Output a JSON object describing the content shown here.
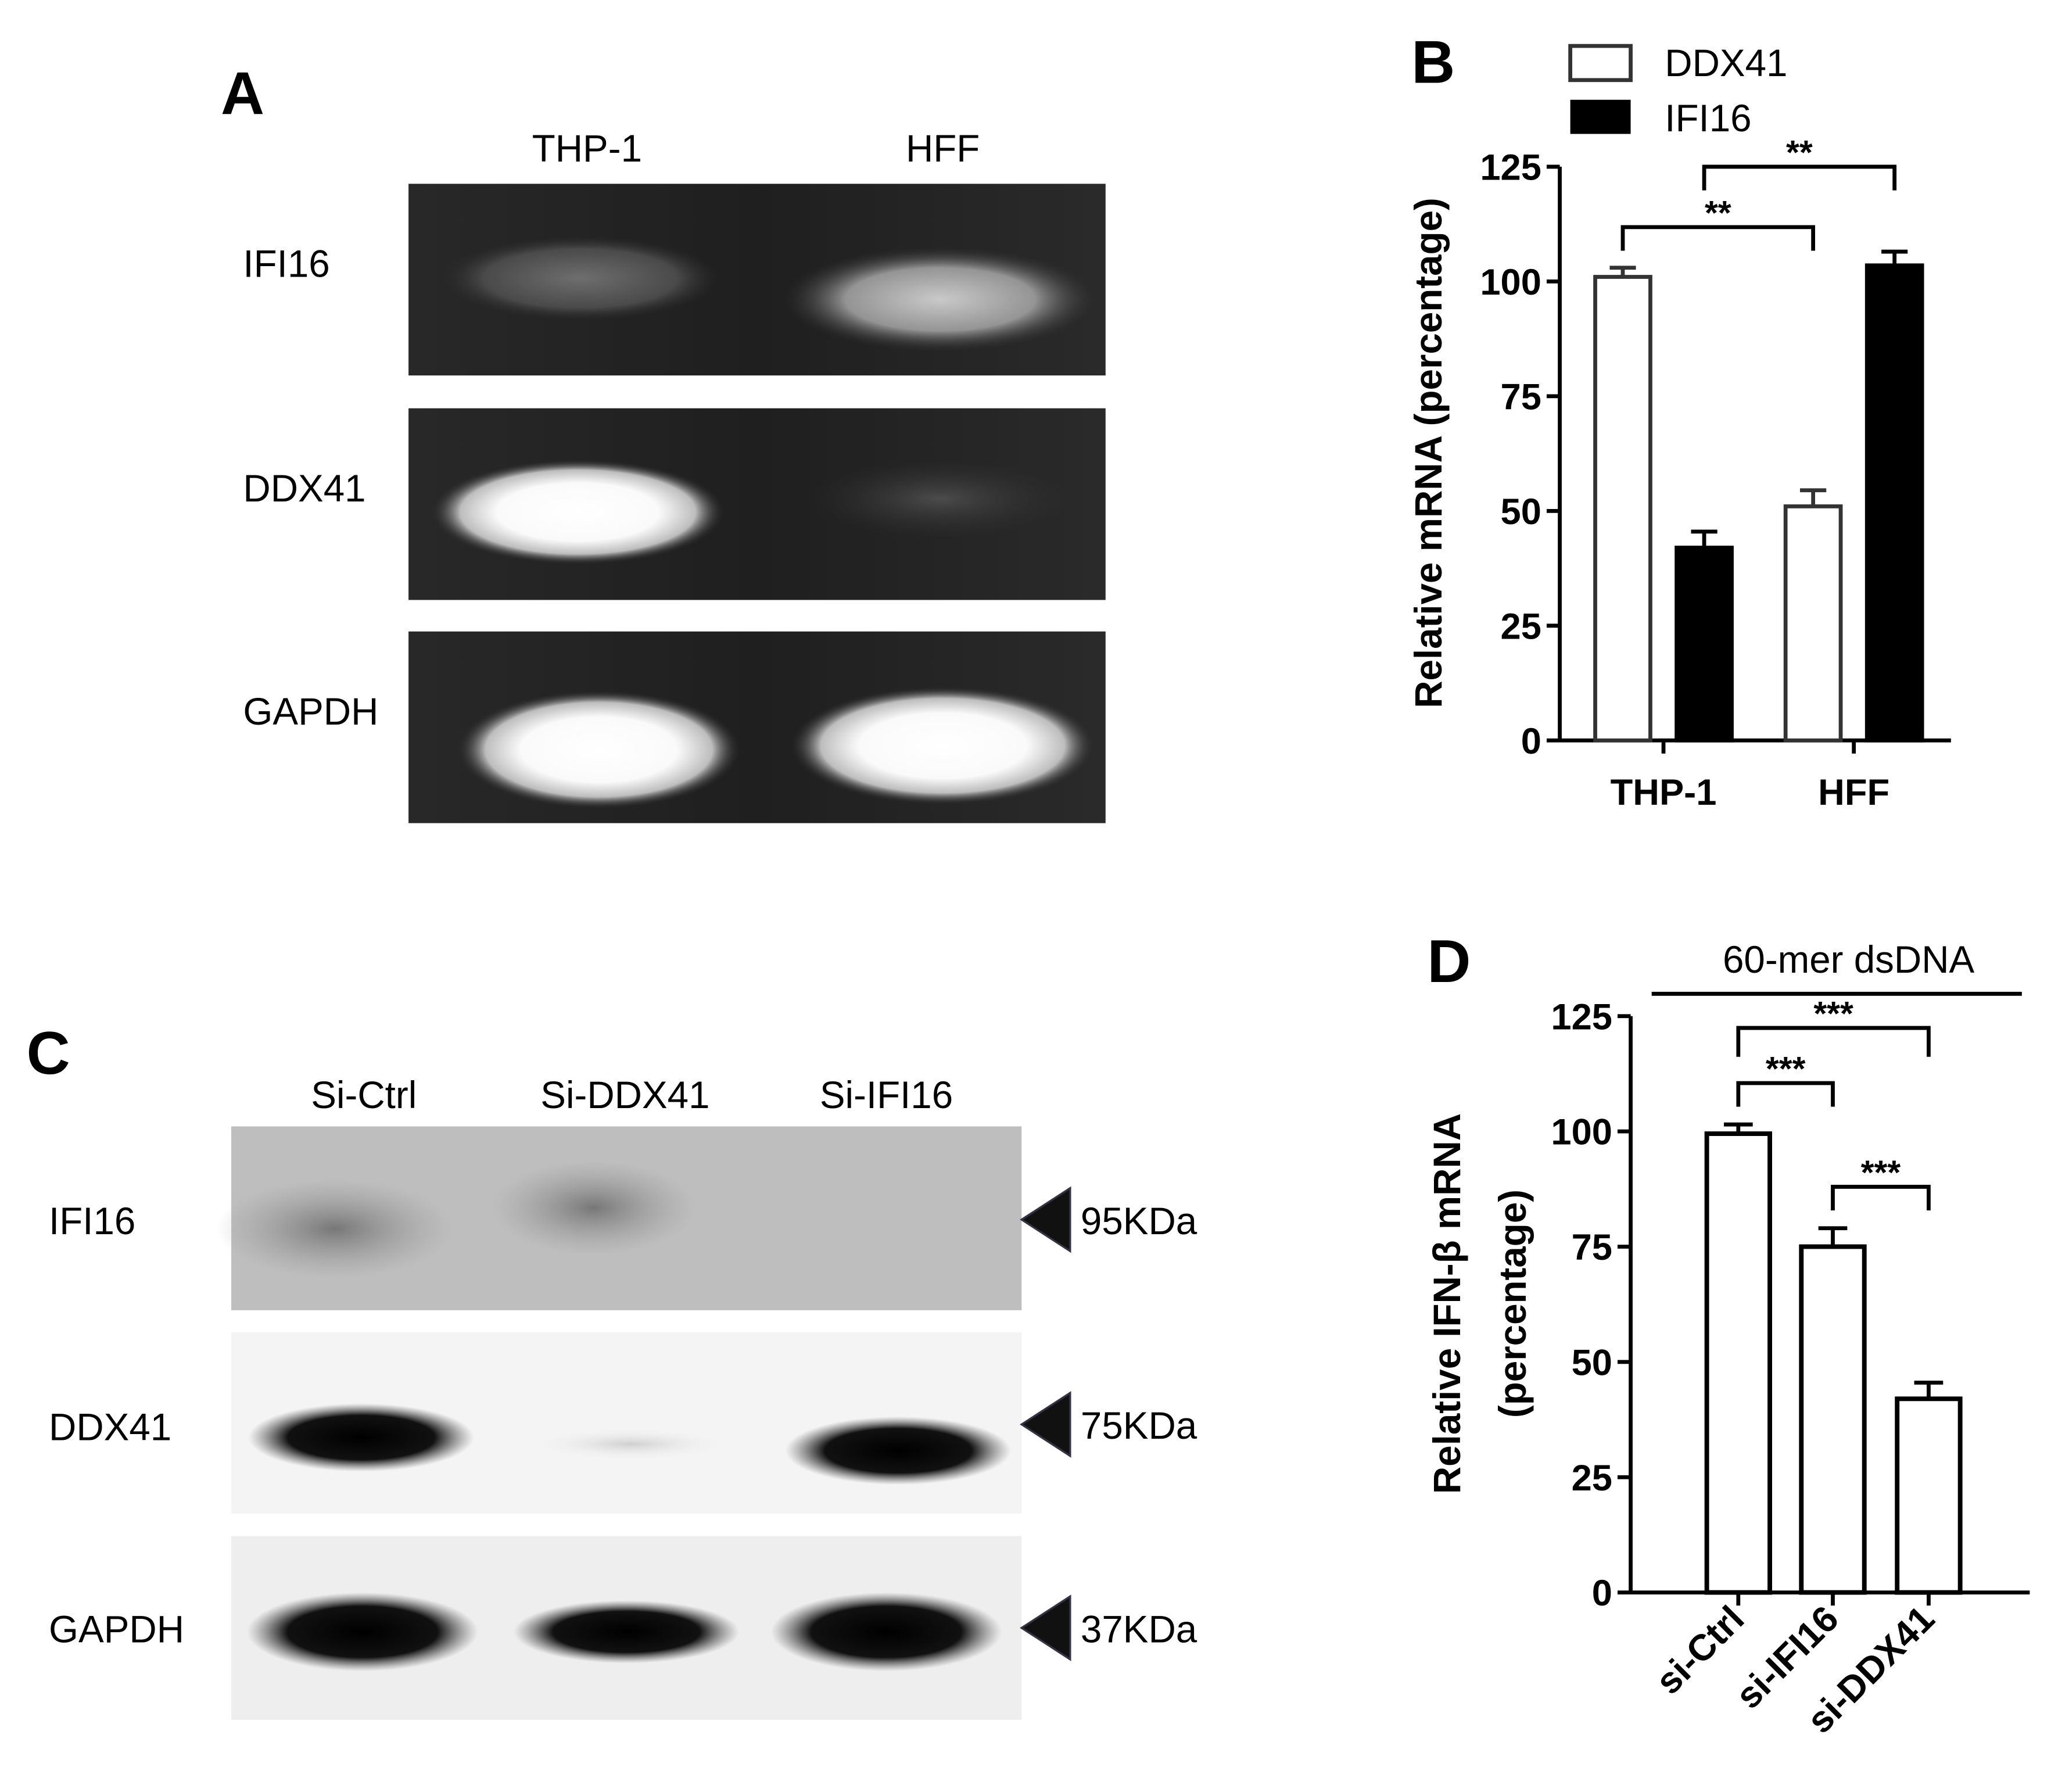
{
  "panel_a": {
    "letter": "A",
    "lanes": [
      "THP-1",
      "HFF"
    ],
    "rows": [
      "IFI16",
      "DDX41",
      "GAPDH"
    ]
  },
  "panel_c": {
    "letter": "C",
    "lanes": [
      "Si-Ctrl",
      "Si-DDX41",
      "Si-IFI16"
    ],
    "rows": [
      "IFI16",
      "DDX41",
      "GAPDH"
    ],
    "markers": [
      "95KDa",
      "75KDa",
      "37KDa"
    ]
  },
  "chart_data": [
    {
      "panel": "B",
      "type": "bar",
      "categories": [
        "THP-1",
        "HFF"
      ],
      "ylabel": "Relative mRNA (percentage)",
      "ylim": [
        0,
        125
      ],
      "yticks": [
        "0",
        "25",
        "50",
        "75",
        "100",
        "125"
      ],
      "series": [
        {
          "name": "DDX41",
          "values": [
            101,
            51
          ],
          "errors": [
            2,
            3.5
          ],
          "fill": "#ffffff",
          "stroke": "#333333"
        },
        {
          "name": "IFI16",
          "values": [
            42,
            103.5
          ],
          "errors": [
            3.5,
            3
          ],
          "fill": "#000000",
          "stroke": "#000000"
        }
      ],
      "legend": "top",
      "significance": [
        {
          "label": "**",
          "from": "THP-1 DDX41",
          "to": "HFF DDX41"
        },
        {
          "label": "**",
          "from": "THP-1 IFI16",
          "to": "HFF IFI16"
        }
      ]
    },
    {
      "panel": "D",
      "type": "bar",
      "title": "60-mer dsDNA",
      "categories": [
        "si-Ctrl",
        "si-IFI16",
        "si-DDX41"
      ],
      "ylabel": "Relative IFN-β mRNA (percentage)",
      "ylabel_lines": [
        "Relative IFN-β mRNA",
        "(percentage)"
      ],
      "ylim": [
        0,
        125
      ],
      "yticks": [
        "0",
        "25",
        "50",
        "75",
        "100",
        "125"
      ],
      "values": [
        99.5,
        75,
        42
      ],
      "errors": [
        2,
        4,
        3.5
      ],
      "significance": [
        {
          "label": "***",
          "from": "si-Ctrl",
          "to": "si-DDX41"
        },
        {
          "label": "***",
          "from": "si-Ctrl",
          "to": "si-IFI16"
        },
        {
          "label": "***",
          "from": "si-IFI16",
          "to": "si-DDX41"
        }
      ]
    }
  ]
}
